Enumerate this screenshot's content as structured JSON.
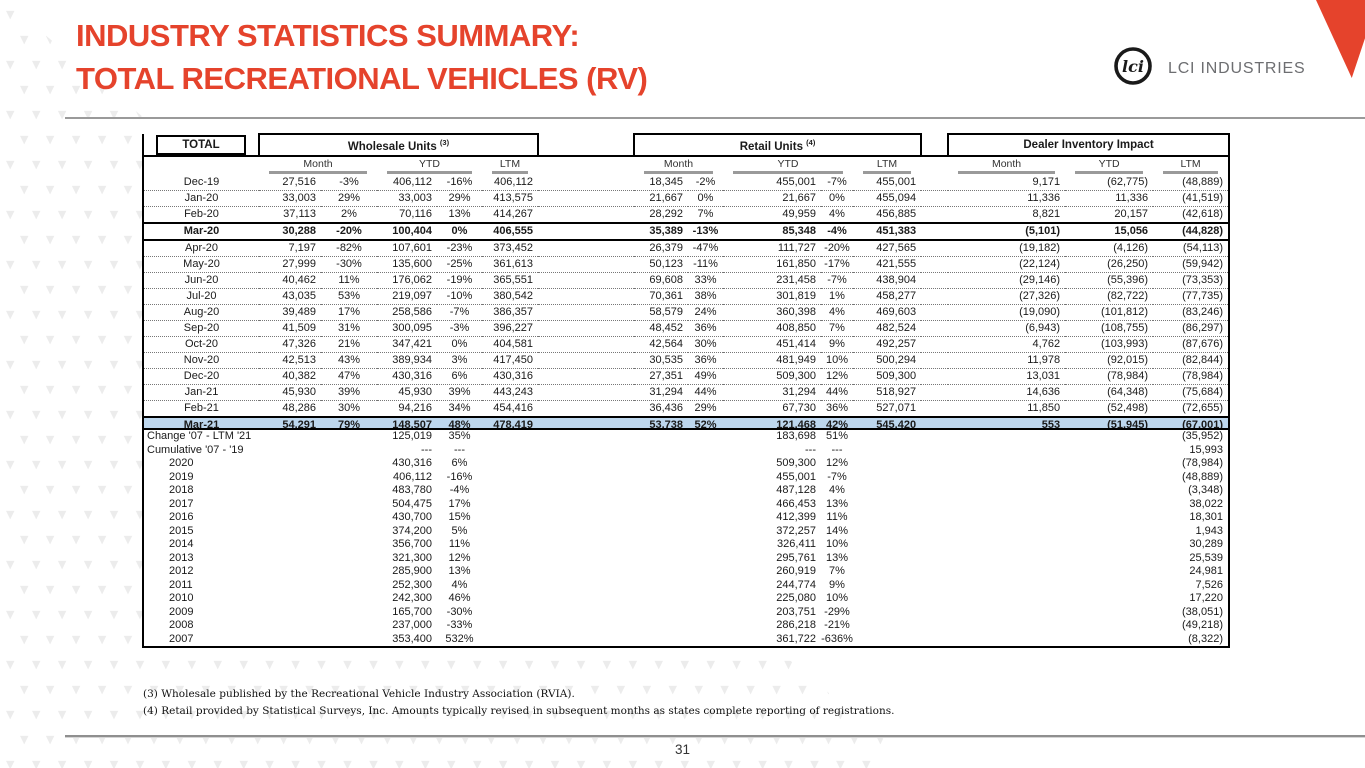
{
  "slide": {
    "title_line1": "INDUSTRY STATISTICS SUMMARY:",
    "title_line2": "TOTAL RECREATIONAL VEHICLES (RV)",
    "brand": "LCI INDUSTRIES",
    "logo_monogram": "lci",
    "page_number": "31",
    "footnotes": [
      "(3) Wholesale published by the Recreational Vehicle Industry Association (RVIA).",
      "(4) Retail provided by Statistical Surveys, Inc.  Amounts typically revised in subsequent months as states complete reporting of registrations."
    ],
    "colors": {
      "accent": "#E5432C",
      "highlight_row": "#BDD7EE",
      "rule_gray": "#9a9a9a"
    }
  },
  "table1": {
    "corner_label": "TOTAL",
    "groups": [
      {
        "label": "Wholesale Units ",
        "sup": "(3)"
      },
      {
        "label": "Retail Units ",
        "sup": "(4)"
      },
      {
        "label": "Dealer Inventory Impact",
        "sup": ""
      }
    ],
    "subheaders": [
      "Month",
      "YTD",
      "LTM"
    ],
    "rows": [
      {
        "label": "Dec-19",
        "style": "",
        "cells": [
          "27,516",
          "-3%",
          "406,112",
          "-16%",
          "406,112",
          "18,345",
          "-2%",
          "455,001",
          "-7%",
          "455,001",
          "9,171",
          "(62,775)",
          "(48,889)"
        ]
      },
      {
        "label": "Jan-20",
        "style": "",
        "cells": [
          "33,003",
          "29%",
          "33,003",
          "29%",
          "413,575",
          "21,667",
          "0%",
          "21,667",
          "0%",
          "455,094",
          "11,336",
          "11,336",
          "(41,519)"
        ]
      },
      {
        "label": "Feb-20",
        "style": "",
        "cells": [
          "37,113",
          "2%",
          "70,116",
          "13%",
          "414,267",
          "28,292",
          "7%",
          "49,959",
          "4%",
          "456,885",
          "8,821",
          "20,157",
          "(42,618)"
        ]
      },
      {
        "label": "Mar-20",
        "style": "emph",
        "cells": [
          "30,288",
          "-20%",
          "100,404",
          "0%",
          "406,555",
          "35,389",
          "-13%",
          "85,348",
          "-4%",
          "451,383",
          "(5,101)",
          "15,056",
          "(44,828)"
        ]
      },
      {
        "label": "Apr-20",
        "style": "",
        "cells": [
          "7,197",
          "-82%",
          "107,601",
          "-23%",
          "373,452",
          "26,379",
          "-47%",
          "111,727",
          "-20%",
          "427,565",
          "(19,182)",
          "(4,126)",
          "(54,113)"
        ]
      },
      {
        "label": "May-20",
        "style": "",
        "cells": [
          "27,999",
          "-30%",
          "135,600",
          "-25%",
          "361,613",
          "50,123",
          "-11%",
          "161,850",
          "-17%",
          "421,555",
          "(22,124)",
          "(26,250)",
          "(59,942)"
        ]
      },
      {
        "label": "Jun-20",
        "style": "",
        "cells": [
          "40,462",
          "11%",
          "176,062",
          "-19%",
          "365,551",
          "69,608",
          "33%",
          "231,458",
          "-7%",
          "438,904",
          "(29,146)",
          "(55,396)",
          "(73,353)"
        ]
      },
      {
        "label": "Jul-20",
        "style": "",
        "cells": [
          "43,035",
          "53%",
          "219,097",
          "-10%",
          "380,542",
          "70,361",
          "38%",
          "301,819",
          "1%",
          "458,277",
          "(27,326)",
          "(82,722)",
          "(77,735)"
        ]
      },
      {
        "label": "Aug-20",
        "style": "",
        "cells": [
          "39,489",
          "17%",
          "258,586",
          "-7%",
          "386,357",
          "58,579",
          "24%",
          "360,398",
          "4%",
          "469,603",
          "(19,090)",
          "(101,812)",
          "(83,246)"
        ]
      },
      {
        "label": "Sep-20",
        "style": "",
        "cells": [
          "41,509",
          "31%",
          "300,095",
          "-3%",
          "396,227",
          "48,452",
          "36%",
          "408,850",
          "7%",
          "482,524",
          "(6,943)",
          "(108,755)",
          "(86,297)"
        ]
      },
      {
        "label": "Oct-20",
        "style": "",
        "cells": [
          "47,326",
          "21%",
          "347,421",
          "0%",
          "404,581",
          "42,564",
          "30%",
          "451,414",
          "9%",
          "492,257",
          "4,762",
          "(103,993)",
          "(87,676)"
        ]
      },
      {
        "label": "Nov-20",
        "style": "",
        "cells": [
          "42,513",
          "43%",
          "389,934",
          "3%",
          "417,450",
          "30,535",
          "36%",
          "481,949",
          "10%",
          "500,294",
          "11,978",
          "(92,015)",
          "(82,844)"
        ]
      },
      {
        "label": "Dec-20",
        "style": "",
        "cells": [
          "40,382",
          "47%",
          "430,316",
          "6%",
          "430,316",
          "27,351",
          "49%",
          "509,300",
          "12%",
          "509,300",
          "13,031",
          "(78,984)",
          "(78,984)"
        ]
      },
      {
        "label": "Jan-21",
        "style": "",
        "cells": [
          "45,930",
          "39%",
          "45,930",
          "39%",
          "443,243",
          "31,294",
          "44%",
          "31,294",
          "44%",
          "518,927",
          "14,636",
          "(64,348)",
          "(75,684)"
        ]
      },
      {
        "label": "Feb-21",
        "style": "",
        "cells": [
          "48,286",
          "30%",
          "94,216",
          "34%",
          "454,416",
          "36,436",
          "29%",
          "67,730",
          "36%",
          "527,071",
          "11,850",
          "(52,498)",
          "(72,655)"
        ]
      },
      {
        "label": "Mar-21",
        "style": "total",
        "cells": [
          "54,291",
          "79%",
          "148,507",
          "48%",
          "478,419",
          "53,738",
          "52%",
          "121,468",
          "42%",
          "545,420",
          "553",
          "(51,945)",
          "(67,001)"
        ]
      }
    ]
  },
  "table2": {
    "rows": [
      {
        "label": "Change '07 - LTM '21",
        "indent": false,
        "cells": [
          "125,019",
          "35%",
          "183,698",
          "51%",
          "(35,952)"
        ]
      },
      {
        "label": "Cumulative '07 - '19",
        "indent": false,
        "cells": [
          "---",
          "---",
          "---",
          "---",
          "15,993"
        ]
      },
      {
        "label": "2020",
        "indent": true,
        "cells": [
          "430,316",
          "6%",
          "509,300",
          "12%",
          "(78,984)"
        ]
      },
      {
        "label": "2019",
        "indent": true,
        "cells": [
          "406,112",
          "-16%",
          "455,001",
          "-7%",
          "(48,889)"
        ]
      },
      {
        "label": "2018",
        "indent": true,
        "cells": [
          "483,780",
          "-4%",
          "487,128",
          "4%",
          "(3,348)"
        ]
      },
      {
        "label": "2017",
        "indent": true,
        "cells": [
          "504,475",
          "17%",
          "466,453",
          "13%",
          "38,022"
        ]
      },
      {
        "label": "2016",
        "indent": true,
        "cells": [
          "430,700",
          "15%",
          "412,399",
          "11%",
          "18,301"
        ]
      },
      {
        "label": "2015",
        "indent": true,
        "cells": [
          "374,200",
          "5%",
          "372,257",
          "14%",
          "1,943"
        ]
      },
      {
        "label": "2014",
        "indent": true,
        "cells": [
          "356,700",
          "11%",
          "326,411",
          "10%",
          "30,289"
        ]
      },
      {
        "label": "2013",
        "indent": true,
        "cells": [
          "321,300",
          "12%",
          "295,761",
          "13%",
          "25,539"
        ]
      },
      {
        "label": "2012",
        "indent": true,
        "cells": [
          "285,900",
          "13%",
          "260,919",
          "7%",
          "24,981"
        ]
      },
      {
        "label": "2011",
        "indent": true,
        "cells": [
          "252,300",
          "4%",
          "244,774",
          "9%",
          "7,526"
        ]
      },
      {
        "label": "2010",
        "indent": true,
        "cells": [
          "242,300",
          "46%",
          "225,080",
          "10%",
          "17,220"
        ]
      },
      {
        "label": "2009",
        "indent": true,
        "cells": [
          "165,700",
          "-30%",
          "203,751",
          "-29%",
          "(38,051)"
        ]
      },
      {
        "label": "2008",
        "indent": true,
        "cells": [
          "237,000",
          "-33%",
          "286,218",
          "-21%",
          "(49,218)"
        ]
      },
      {
        "label": "2007",
        "indent": true,
        "cells": [
          "353,400",
          "532%",
          "361,722",
          "-636%",
          "(8,322)"
        ]
      }
    ]
  }
}
